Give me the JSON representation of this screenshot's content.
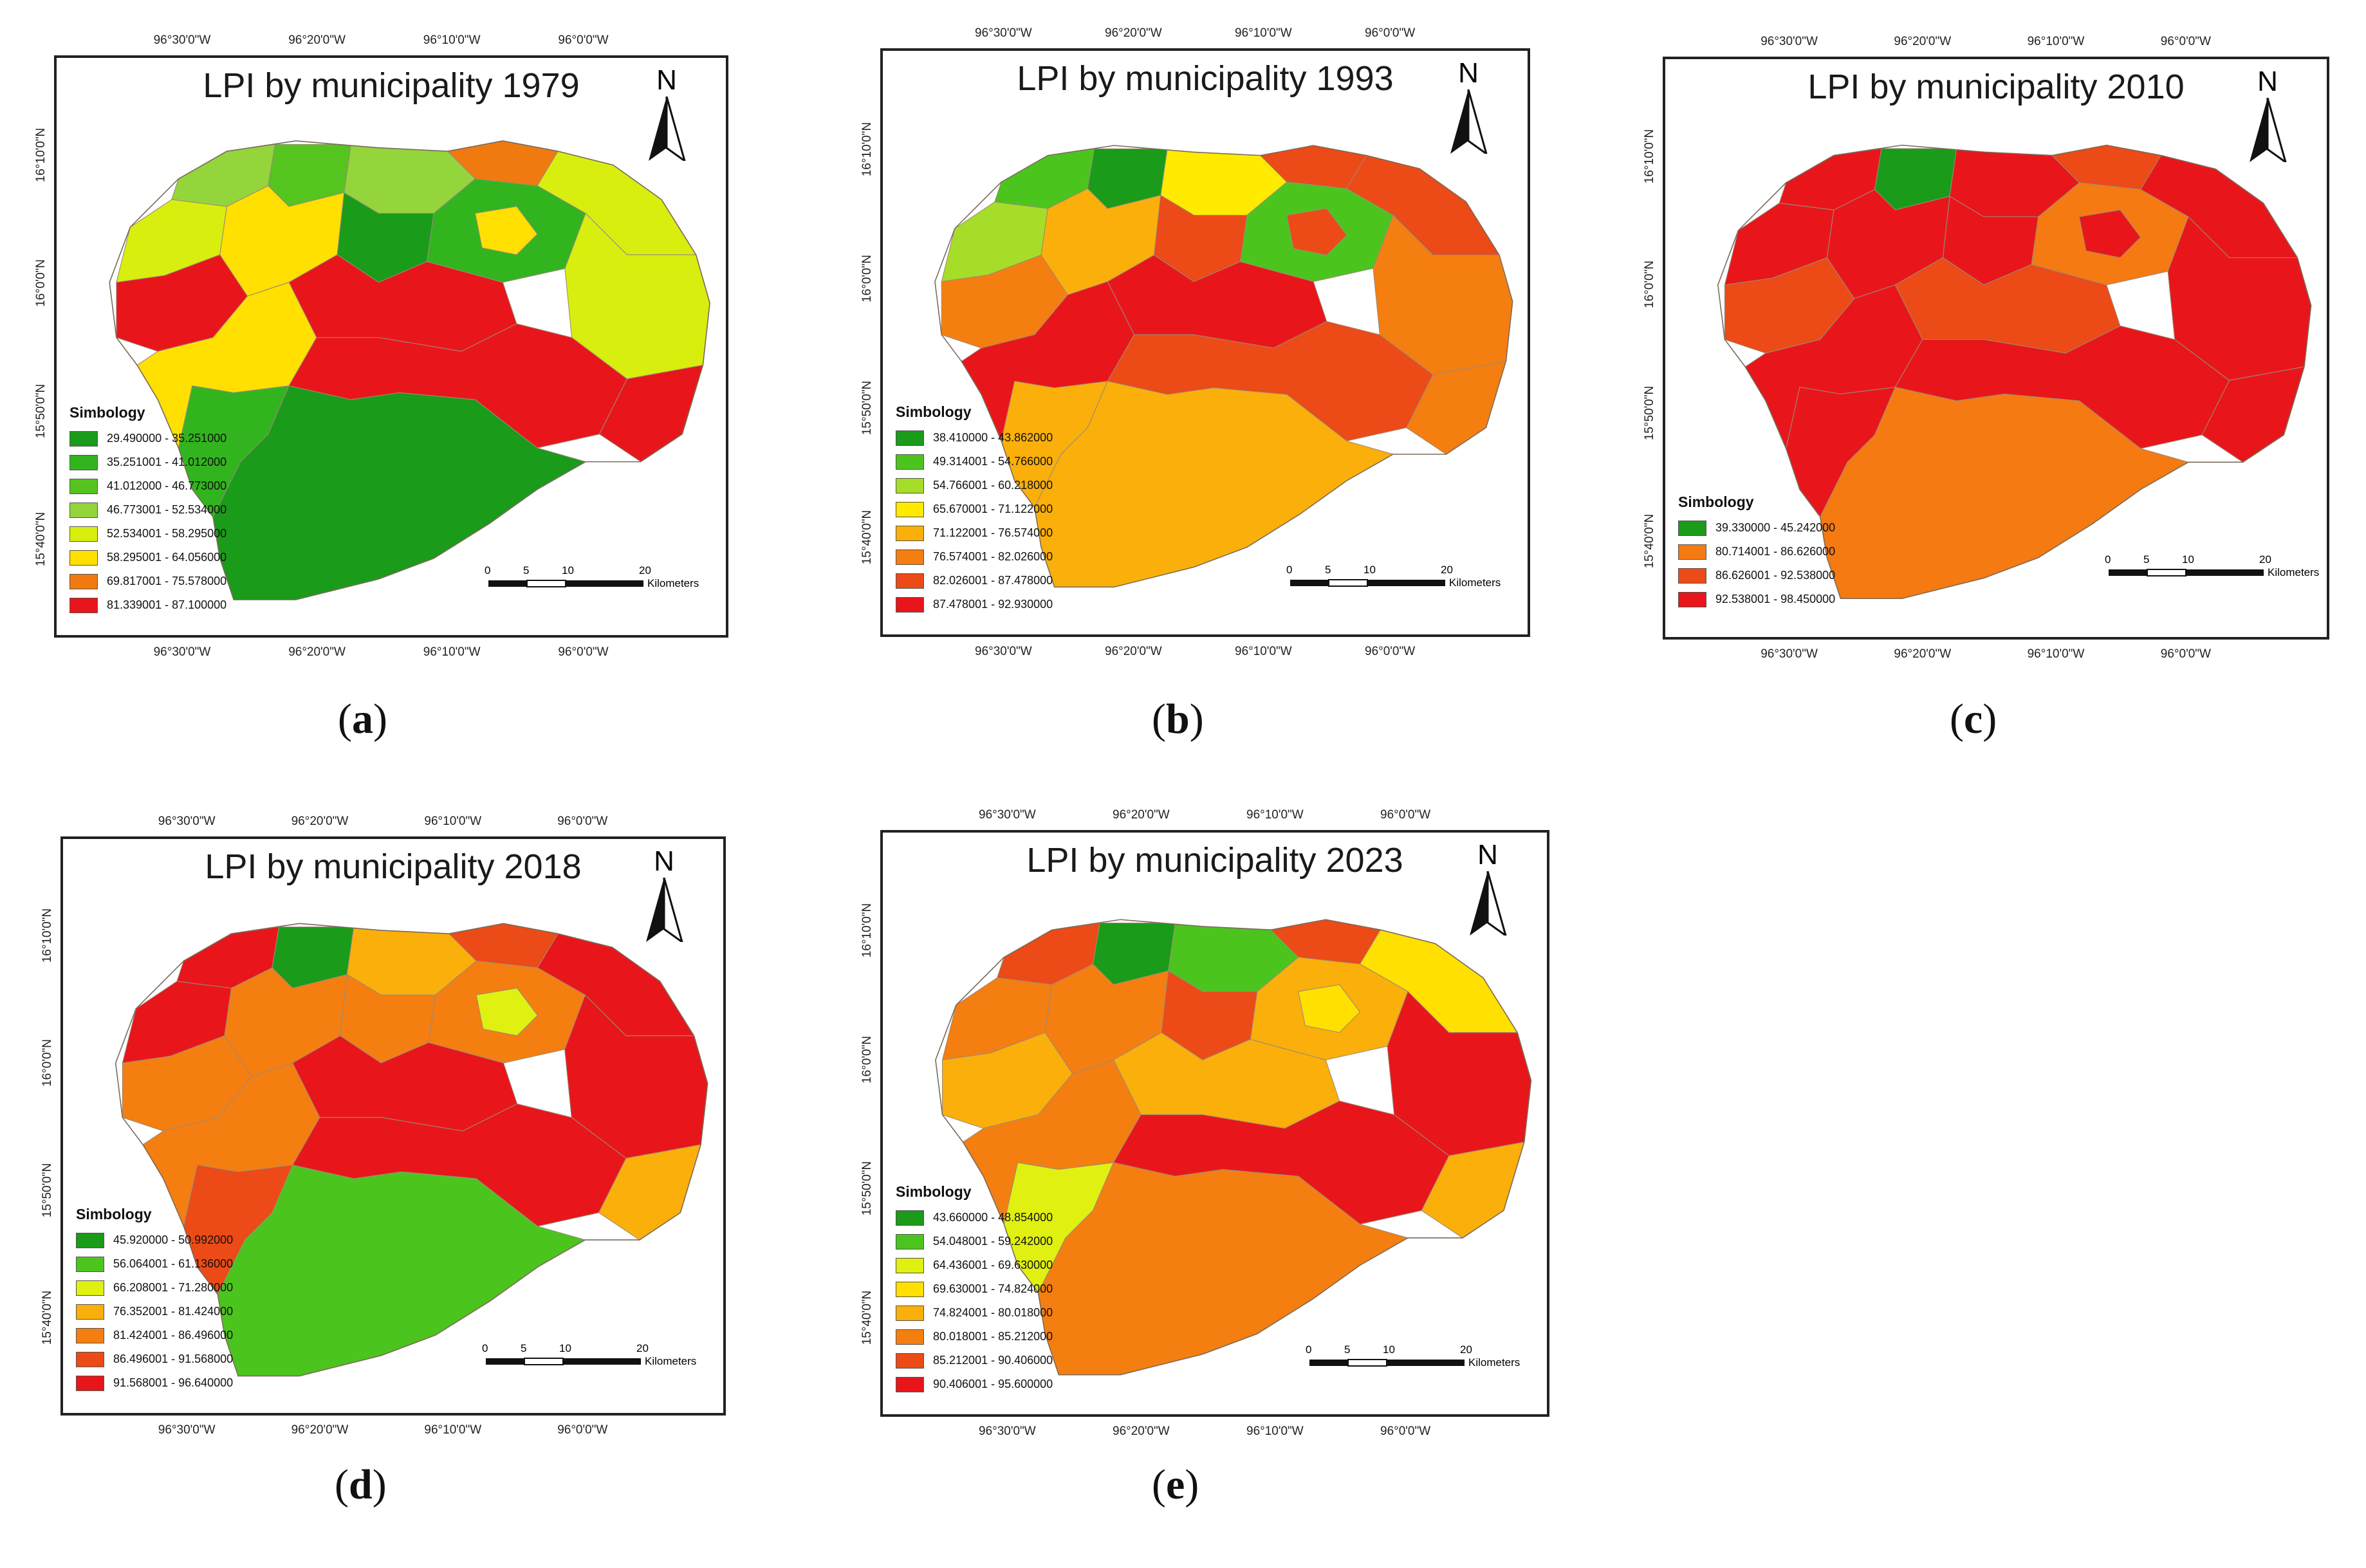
{
  "panels": [
    {
      "title": "LPI by municipality 1979",
      "caption_letter": "a",
      "legend": [
        {
          "label": "29.490000 - 35.251000",
          "color": "#1a9b1a"
        },
        {
          "label": "35.251001 - 41.012000",
          "color": "#32b41e"
        },
        {
          "label": "41.012000 - 46.773000",
          "color": "#55c41e"
        },
        {
          "label": "46.773001 - 52.534000",
          "color": "#93d53a"
        },
        {
          "label": "52.534001 - 58.295000",
          "color": "#d8ee0f"
        },
        {
          "label": "58.295001 - 64.056000",
          "color": "#ffe000"
        },
        {
          "label": "69.817001 - 75.578000",
          "color": "#f07a10"
        },
        {
          "label": "81.339001 - 87.100000",
          "color": "#e8161a"
        }
      ]
    },
    {
      "title": "LPI by municipality 1993",
      "caption_letter": "b",
      "legend": [
        {
          "label": "38.410000 - 43.862000",
          "color": "#1a9b1a"
        },
        {
          "label": "49.314001 - 54.766000",
          "color": "#4cc41e"
        },
        {
          "label": "54.766001 - 60.218000",
          "color": "#a6dd28"
        },
        {
          "label": "65.670001 - 71.122000",
          "color": "#ffea00"
        },
        {
          "label": "71.122001 - 76.574000",
          "color": "#fbaf0a"
        },
        {
          "label": "76.574001 - 82.026000",
          "color": "#f57e10"
        },
        {
          "label": "82.026001 - 87.478000",
          "color": "#ec4a16"
        },
        {
          "label": "87.478001 - 92.930000",
          "color": "#e8161a"
        }
      ]
    },
    {
      "title": "LPI by municipality 2010",
      "caption_letter": "c",
      "legend": [
        {
          "label": "39.330000 - 45.242000",
          "color": "#1a9b1a"
        },
        {
          "label": "80.714001 - 86.626000",
          "color": "#f57a12"
        },
        {
          "label": "86.626001 - 92.538000",
          "color": "#ec4a16"
        },
        {
          "label": "92.538001 - 98.450000",
          "color": "#e8161a"
        }
      ]
    },
    {
      "title": "LPI by municipality 2018",
      "caption_letter": "d",
      "legend": [
        {
          "label": "45.920000 - 50.992000",
          "color": "#1a9b1a"
        },
        {
          "label": "56.064001 - 61.136000",
          "color": "#4cc41e"
        },
        {
          "label": "66.208001 - 71.280000",
          "color": "#e0f010"
        },
        {
          "label": "76.352001 - 81.424000",
          "color": "#fbaf0a"
        },
        {
          "label": "81.424001 - 86.496000",
          "color": "#f57e10"
        },
        {
          "label": "86.496001 - 91.568000",
          "color": "#ec4a16"
        },
        {
          "label": "91.568001 - 96.640000",
          "color": "#e8161a"
        }
      ]
    },
    {
      "title": "LPI by municipality 2023",
      "caption_letter": "e",
      "legend": [
        {
          "label": "43.660000 - 48.854000",
          "color": "#1a9b1a"
        },
        {
          "label": "54.048001 - 59.242000",
          "color": "#4cc41e"
        },
        {
          "label": "64.436001 - 69.630000",
          "color": "#e0f010"
        },
        {
          "label": "69.630001 - 74.824000",
          "color": "#ffe000"
        },
        {
          "label": "74.824001 - 80.018000",
          "color": "#fbaf0a"
        },
        {
          "label": "80.018001 - 85.212000",
          "color": "#f57e10"
        },
        {
          "label": "85.212001 - 90.406000",
          "color": "#ec4a16"
        },
        {
          "label": "90.406001 - 95.600000",
          "color": "#e8161a"
        }
      ]
    }
  ],
  "legend_title": "Simbology",
  "north_label": "N",
  "scale": {
    "ticks": [
      "0",
      "5",
      "10",
      "20"
    ],
    "unit": "Kilometers"
  },
  "lon_labels": [
    "96°30'0\"W",
    "96°20'0\"W",
    "96°10'0\"W",
    "96°0'0\"W"
  ],
  "lat_labels": [
    "16°10'0\"N",
    "16°0'0\"N",
    "15°50'0\"N",
    "15°40'0\"N"
  ]
}
